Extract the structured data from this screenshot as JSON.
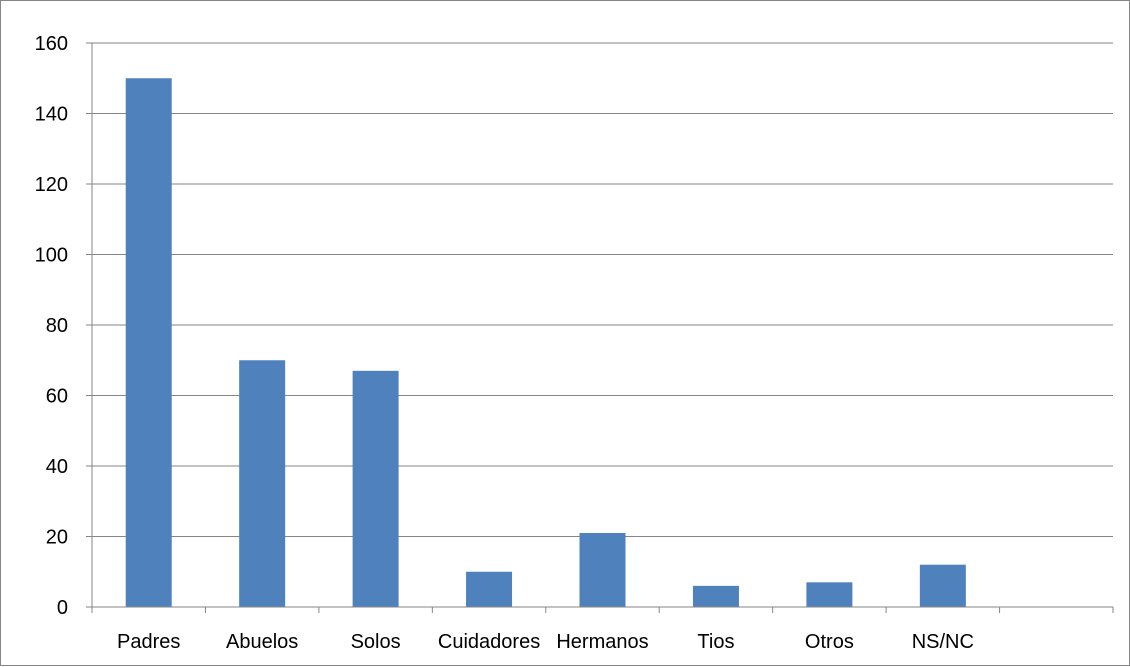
{
  "chart_data": {
    "type": "bar",
    "title": "",
    "xlabel": "",
    "ylabel": "",
    "categories": [
      "Padres",
      "Abuelos",
      "Solos",
      "Cuidadores",
      "Hermanos",
      "Tios",
      "Otros",
      "NS/NC",
      ""
    ],
    "values": [
      150,
      70,
      67,
      10,
      21,
      6,
      7,
      12,
      null
    ],
    "ylim": [
      0,
      160
    ],
    "yticks": [
      0,
      20,
      40,
      60,
      80,
      100,
      120,
      140,
      160
    ],
    "grid": true,
    "legend": "none",
    "bar_color": "#4f81bd",
    "grid_color": "#868686"
  }
}
